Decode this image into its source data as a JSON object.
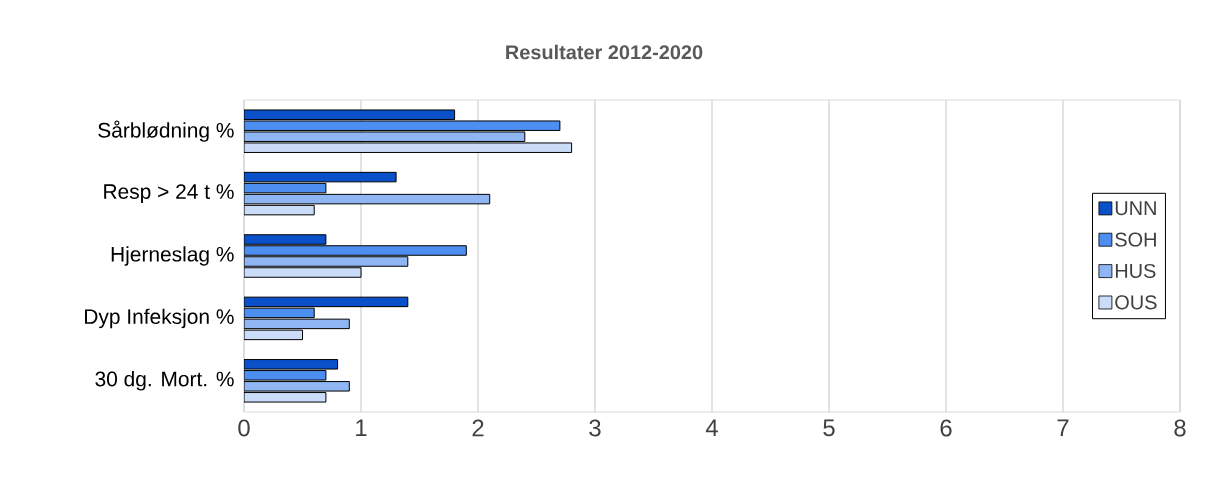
{
  "chart_data": {
    "type": "bar",
    "orientation": "horizontal",
    "title": "Resultater 2012-2020",
    "categories": [
      "Sårblødning %",
      "Resp > 24 t %",
      "Hjerneslag %",
      "Dyp Infeksjon %",
      "30 dg. Mort. %"
    ],
    "series": [
      {
        "name": "UNN",
        "color": "#0a50c8",
        "values": [
          1.8,
          1.3,
          0.7,
          1.4,
          0.8
        ]
      },
      {
        "name": "SOH",
        "color": "#4d8ff0",
        "values": [
          2.7,
          0.7,
          1.9,
          0.6,
          0.7
        ]
      },
      {
        "name": "HUS",
        "color": "#8fb6f2",
        "values": [
          2.4,
          2.1,
          1.4,
          0.9,
          0.9
        ]
      },
      {
        "name": "OUS",
        "color": "#cadcf8",
        "values": [
          2.8,
          0.6,
          1.0,
          0.5,
          0.7
        ]
      }
    ],
    "xlim": [
      0,
      8
    ],
    "xticks": [
      0,
      1,
      2,
      3,
      4,
      5,
      6,
      7,
      8
    ],
    "grid": "x",
    "legend": "right"
  }
}
